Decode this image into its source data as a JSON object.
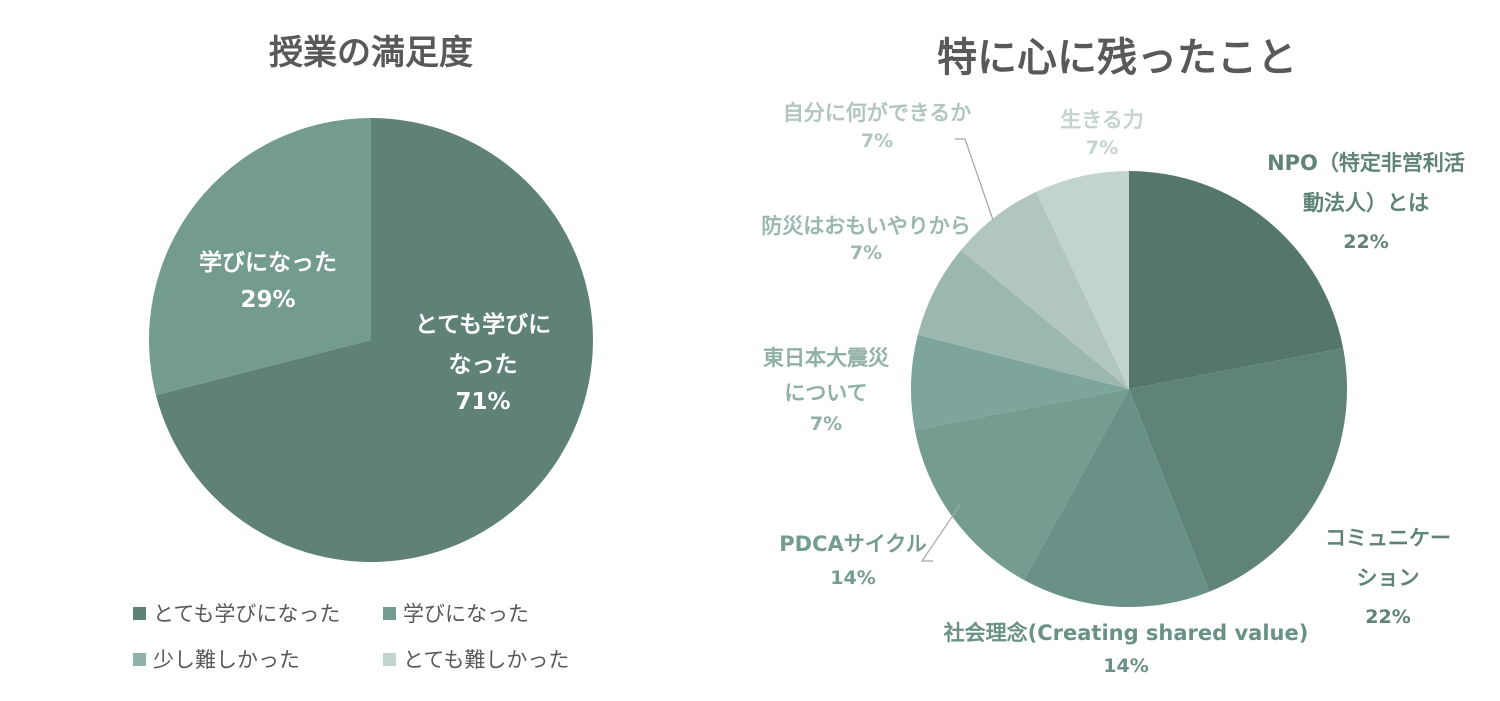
{
  "chart_data": [
    {
      "type": "pie",
      "title": "授業の満足度",
      "slices": [
        {
          "category": "とても学びになった",
          "label_lines": [
            "とても学びに",
            "なった"
          ],
          "value": 71,
          "percent_label": "71%",
          "color": "#5f8177"
        },
        {
          "category": "学びになった",
          "label_lines": [
            "学びになった"
          ],
          "value": 29,
          "percent_label": "29%",
          "color": "#739b90"
        },
        {
          "category": "少し難しかった",
          "value": 0,
          "color": "#8fb3aa"
        },
        {
          "category": "とても難しかった",
          "value": 0,
          "color": "#c3d3cf"
        }
      ],
      "legend": {
        "position": "bottom",
        "items": [
          "とても学びになった",
          "学びになった",
          "少し難しかった",
          "とても難しかった"
        ]
      }
    },
    {
      "type": "pie",
      "title": "特に心に残ったこと",
      "slices": [
        {
          "category": "NPO（特定非営利活動法人）とは",
          "label_lines": [
            "NPO（特定非営利活",
            "動法人）とは"
          ],
          "value": 22,
          "percent_label": "22%",
          "color": "#55766b"
        },
        {
          "category": "コミュニケーション",
          "label_lines": [
            "コミュニケー",
            "ション"
          ],
          "value": 22,
          "percent_label": "22%",
          "color": "#5f8378"
        },
        {
          "category": "社会理念(Creating shared value)",
          "label_lines": [
            "社会理念(Creating shared value)"
          ],
          "value": 14,
          "percent_label": "14%",
          "color": "#699187"
        },
        {
          "category": "PDCAサイクル",
          "label_lines": [
            "PDCAサイクル"
          ],
          "value": 14,
          "percent_label": "14%",
          "color": "#749c91"
        },
        {
          "category": "東日本大震災について",
          "label_lines": [
            "東日本大震災",
            "について"
          ],
          "value": 7,
          "percent_label": "7%",
          "color": "#7ea59b"
        },
        {
          "category": "防災はおもいやりから",
          "label_lines": [
            "防災はおもいやりから"
          ],
          "value": 7,
          "percent_label": "7%",
          "color": "#9bb8b0"
        },
        {
          "category": "自分に何ができるか",
          "label_lines": [
            "自分に何ができるか"
          ],
          "value": 7,
          "percent_label": "7%",
          "color": "#b1c6c0"
        },
        {
          "category": "生きる力",
          "label_lines": [
            "生きる力"
          ],
          "value": 7,
          "percent_label": "7%",
          "color": "#c3d4cf"
        }
      ]
    }
  ]
}
